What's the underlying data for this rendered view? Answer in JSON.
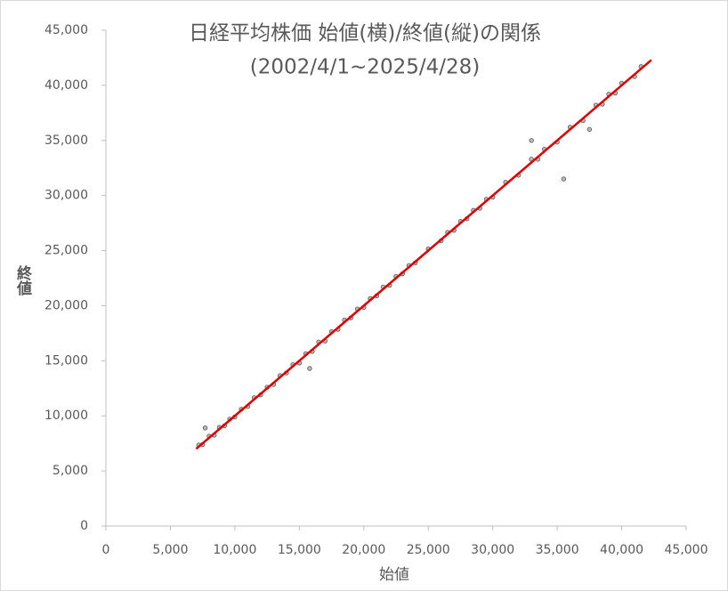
{
  "chart_data": {
    "type": "scatter",
    "title": "日経平均株価 始値(横)/終値(縦)の関係",
    "subtitle": "(2002/4/1~2025/4/28)",
    "x_label": "始値",
    "y_label": "終値",
    "x": [
      7200,
      7500,
      8000,
      8400,
      8800,
      9200,
      9600,
      10000,
      10500,
      11000,
      11500,
      12000,
      12500,
      13000,
      13500,
      14000,
      14500,
      15000,
      15500,
      16000,
      16500,
      17000,
      17500,
      18000,
      18500,
      19000,
      19500,
      20000,
      20500,
      21000,
      21500,
      22000,
      22500,
      23000,
      23500,
      24000,
      25000,
      26000,
      26500,
      27000,
      27500,
      28000,
      28500,
      29000,
      29500,
      30000,
      31000,
      32000,
      33000,
      33500,
      34000,
      35000,
      36000,
      37000,
      38000,
      38500,
      39000,
      39500,
      40000,
      41000,
      41500,
      33000,
      35500,
      7700,
      15800,
      37500
    ],
    "values": [
      7350,
      7400,
      8150,
      8250,
      8950,
      9100,
      9700,
      9900,
      10600,
      10850,
      11650,
      11900,
      12600,
      12850,
      13650,
      13900,
      14650,
      14800,
      15650,
      15850,
      16700,
      16800,
      17650,
      17850,
      18700,
      18900,
      19700,
      19850,
      20650,
      20900,
      21700,
      21850,
      22650,
      22900,
      23650,
      23900,
      25150,
      25900,
      26650,
      26850,
      27650,
      27900,
      28650,
      28850,
      29650,
      29850,
      31200,
      31850,
      33300,
      33300,
      34200,
      34850,
      36200,
      36800,
      38200,
      38300,
      39200,
      39300,
      40200,
      40800,
      41700,
      35000,
      31500,
      8900,
      14300,
      36000
    ],
    "color": "#555555",
    "trendline": {
      "x": [
        7000,
        42300
      ],
      "values": [
        7000,
        42300
      ],
      "color": "#e00000"
    },
    "xlim": [
      0,
      45000
    ],
    "ylim": [
      0,
      45000
    ],
    "xticks": [
      0,
      {
        "value": 5000,
        "label": "5,000"
      },
      {
        "value": 10000,
        "label": "10,000"
      },
      {
        "value": 15000,
        "label": "15,000"
      },
      {
        "value": 20000,
        "label": "20,000"
      },
      {
        "value": 25000,
        "label": "25,000"
      },
      {
        "value": 30000,
        "label": "30,000"
      },
      {
        "value": 35000,
        "label": "35,000"
      },
      {
        "value": 40000,
        "label": "40,000"
      },
      {
        "value": 45000,
        "label": "45,000"
      }
    ],
    "yticks": [
      0,
      {
        "value": 5000,
        "label": "5,000"
      },
      {
        "value": 10000,
        "label": "10,000"
      },
      {
        "value": 15000,
        "label": "15,000"
      },
      {
        "value": 20000,
        "label": "20,000"
      },
      {
        "value": 25000,
        "label": "25,000"
      },
      {
        "value": 30000,
        "label": "30,000"
      },
      {
        "value": 35000,
        "label": "35,000"
      },
      {
        "value": 40000,
        "label": "40,000"
      },
      {
        "value": 45000,
        "label": "45,000"
      }
    ],
    "grid": false
  }
}
